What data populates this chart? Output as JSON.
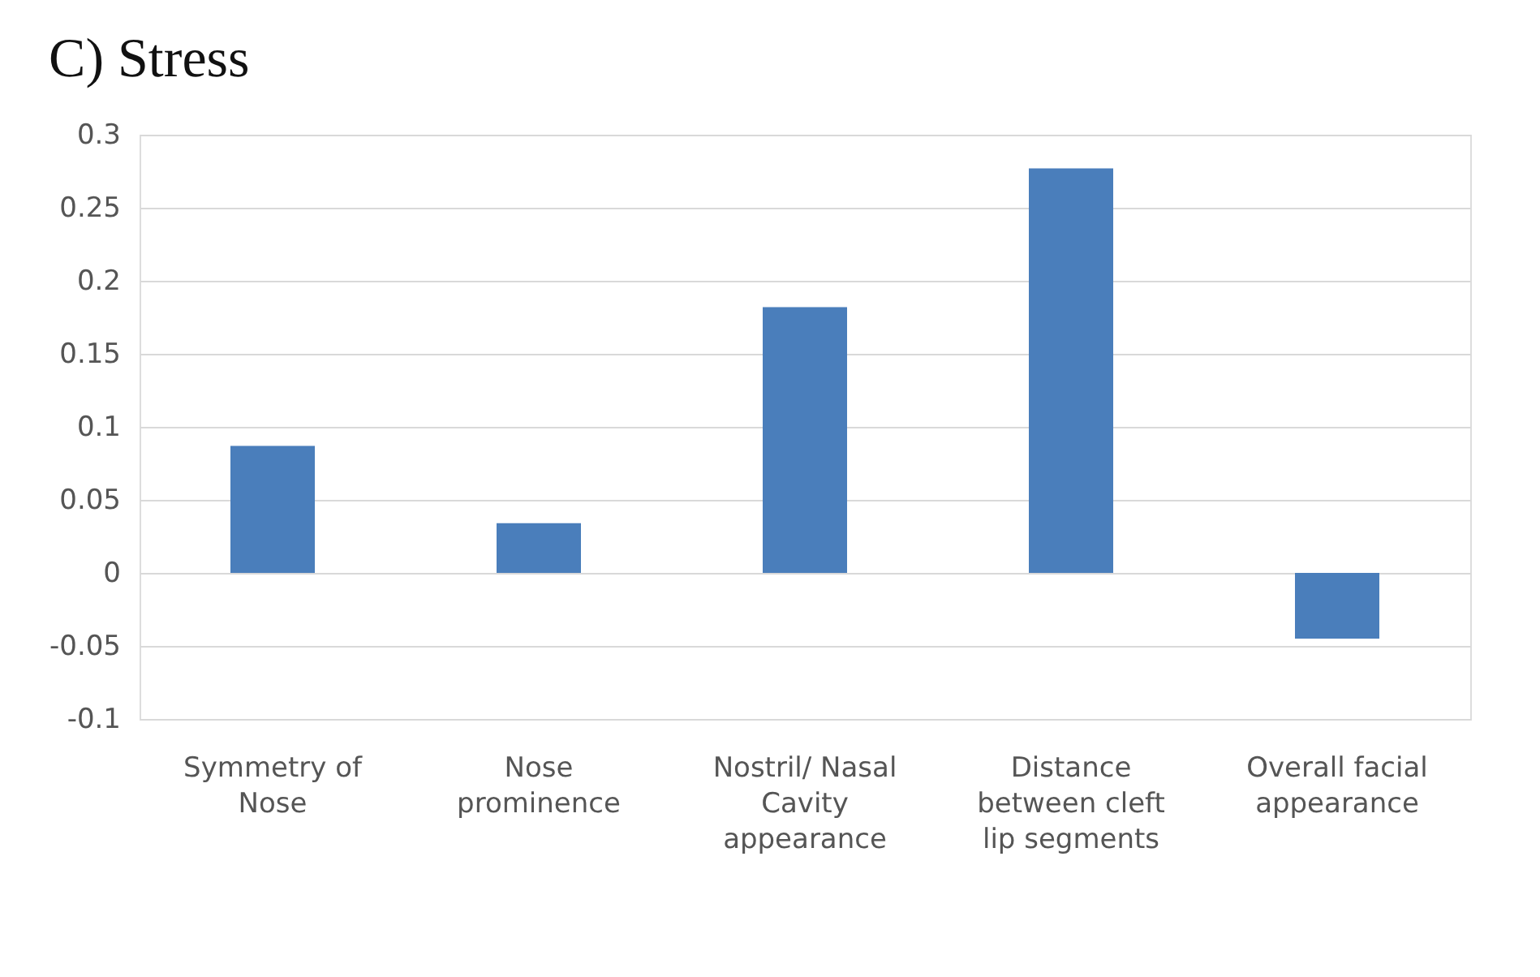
{
  "chart_data": {
    "type": "bar",
    "title": "C) Stress",
    "categories": [
      "Symmetry of Nose",
      "Nose prominence",
      "Nostril/ Nasal Cavity appearance",
      "Distance between cleft lip segments",
      "Overall facial appearance"
    ],
    "values": [
      0.087,
      0.034,
      0.182,
      0.277,
      -0.045
    ],
    "color": "#4a7ebb",
    "ylim": [
      -0.1,
      0.3
    ],
    "yticks": [
      -0.1,
      -0.05,
      0,
      0.05,
      0.1,
      0.15,
      0.2,
      0.25,
      0.3
    ],
    "grid": "y"
  }
}
